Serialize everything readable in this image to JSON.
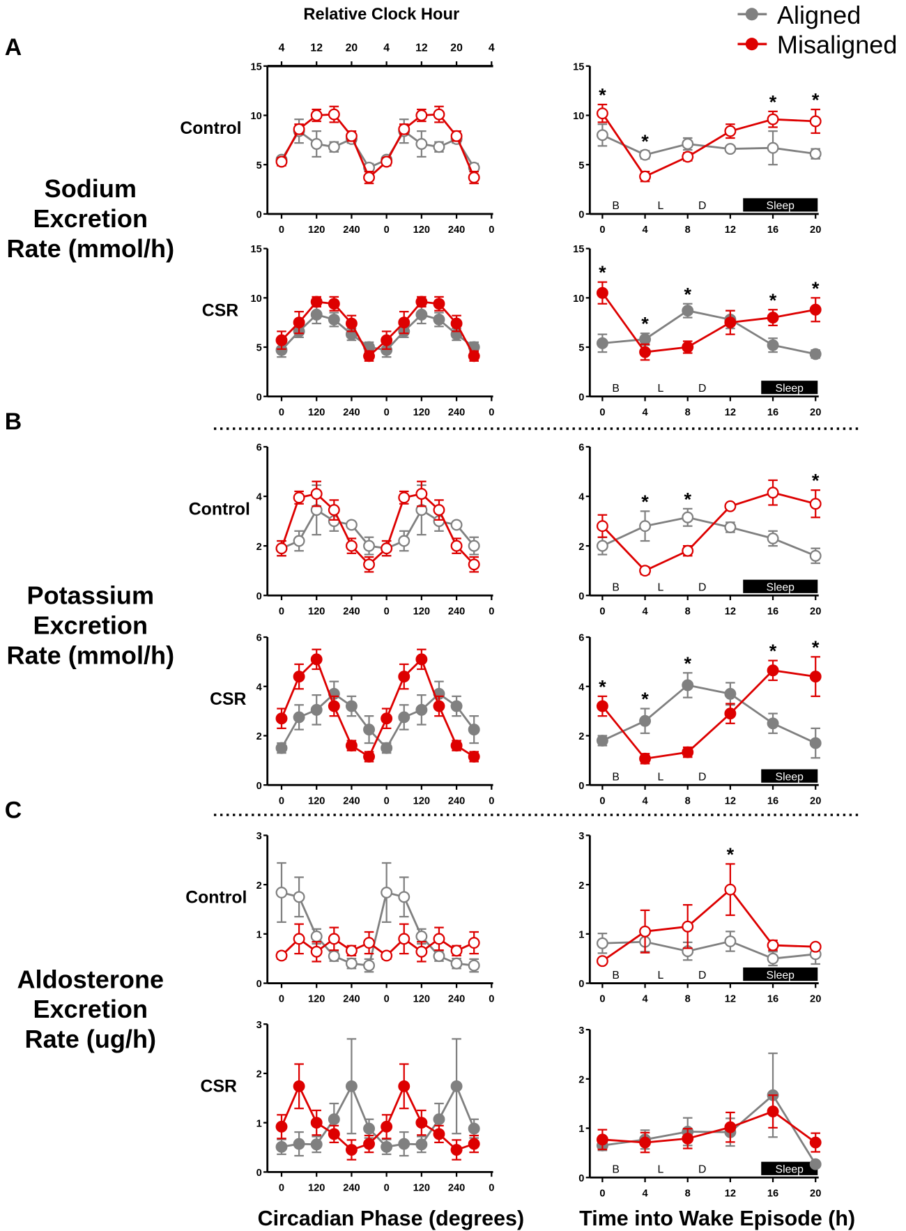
{
  "figure": {
    "top_axis_title": "Relative Clock Hour",
    "clock_hour_labels": [
      "4",
      "12",
      "20",
      "4",
      "12",
      "20",
      "4"
    ],
    "panel_letters": [
      "A",
      "B",
      "C"
    ],
    "row_titles": [
      [
        "Sodium",
        "Excretion",
        "Rate (mmol/h)"
      ],
      [
        "Potassium",
        "Excretion",
        "Rate (mmol/h)"
      ],
      [
        "Aldosterone",
        "Excretion",
        "Rate (ug/h)"
      ]
    ],
    "xlabel_left": "Circadian Phase (degrees)",
    "xlabel_right": "Time into Wake Episode (h)",
    "legend": [
      {
        "name": "Aligned",
        "color": "#808080"
      },
      {
        "name": "Misaligned",
        "color": "#dd0000"
      }
    ],
    "period_labels": [
      "B",
      "L",
      "D"
    ],
    "sleep_label": "Sleep"
  },
  "chart_data": [
    {
      "type": "line",
      "group": "A",
      "condition": "Control",
      "x": [
        0,
        60,
        120,
        180,
        240,
        300,
        360,
        420,
        480,
        540,
        600,
        660
      ],
      "xlim": [
        0,
        720
      ],
      "xticks": [
        0,
        120,
        240,
        360,
        480,
        600,
        720
      ],
      "xtick_labels": [
        "0",
        "120",
        "240",
        "0",
        "120",
        "240",
        "0"
      ],
      "ylim": [
        0,
        15
      ],
      "yticks": [
        "0",
        "5",
        "10",
        "15"
      ],
      "marker": "open",
      "series": [
        {
          "name": "Aligned",
          "values": [
            5.5,
            8.4,
            7.1,
            6.8,
            7.6,
            4.7,
            5.5,
            8.4,
            7.1,
            6.8,
            7.6,
            4.7
          ],
          "errors": [
            0.2,
            1.2,
            1.3,
            0.5,
            0.4,
            0.4,
            0.2,
            1.2,
            1.3,
            0.5,
            0.4,
            0.4
          ]
        },
        {
          "name": "Misaligned",
          "values": [
            5.3,
            8.6,
            10.0,
            10.1,
            7.9,
            3.7,
            5.3,
            8.6,
            10.0,
            10.1,
            7.9,
            3.7
          ],
          "errors": [
            0.4,
            0.5,
            0.6,
            0.8,
            0.5,
            0.6,
            0.4,
            0.5,
            0.6,
            0.8,
            0.5,
            0.6
          ]
        }
      ],
      "significant_x": []
    },
    {
      "type": "line",
      "group": "A",
      "x": [
        0,
        4,
        8,
        12,
        16,
        20
      ],
      "xlim": [
        0,
        20
      ],
      "xticks": [
        0,
        4,
        8,
        12,
        16,
        20
      ],
      "xtick_labels": [
        "0",
        "4",
        "8",
        "12",
        "16",
        "20"
      ],
      "ylim": [
        0,
        15
      ],
      "yticks": [
        "0",
        "5",
        "10",
        "15"
      ],
      "marker": "open",
      "sleep_window": [
        13.2,
        20.2
      ],
      "series": [
        {
          "name": "Aligned",
          "values": [
            8.0,
            6.0,
            7.1,
            6.6,
            6.7,
            6.1
          ],
          "errors": [
            1.1,
            0.4,
            0.6,
            0.3,
            1.7,
            0.5
          ]
        },
        {
          "name": "Misaligned",
          "values": [
            10.2,
            3.8,
            5.8,
            8.4,
            9.6,
            9.4
          ],
          "errors": [
            0.9,
            0.5,
            0.4,
            0.7,
            0.8,
            1.2
          ]
        }
      ],
      "significant_x": [
        0,
        4,
        16,
        20
      ]
    },
    {
      "type": "line",
      "group": "A",
      "condition": "CSR",
      "x": [
        0,
        60,
        120,
        180,
        240,
        300,
        360,
        420,
        480,
        540,
        600,
        660
      ],
      "xlim": [
        0,
        720
      ],
      "xticks": [
        0,
        120,
        240,
        360,
        480,
        600,
        720
      ],
      "xtick_labels": [
        "0",
        "120",
        "240",
        "0",
        "120",
        "240",
        "0"
      ],
      "ylim": [
        0,
        15
      ],
      "yticks": [
        "0",
        "5",
        "10",
        "15"
      ],
      "marker": "filled",
      "series": [
        {
          "name": "Aligned",
          "values": [
            4.7,
            6.6,
            8.3,
            7.8,
            6.3,
            5.0,
            4.7,
            6.6,
            8.3,
            7.8,
            6.3,
            5.0
          ],
          "errors": [
            0.7,
            0.6,
            0.9,
            0.7,
            0.6,
            0.5,
            0.7,
            0.6,
            0.9,
            0.7,
            0.6,
            0.5
          ]
        },
        {
          "name": "Misaligned",
          "values": [
            5.7,
            7.5,
            9.6,
            9.4,
            7.4,
            4.1,
            5.7,
            7.5,
            9.6,
            9.4,
            7.4,
            4.1
          ],
          "errors": [
            0.9,
            1.1,
            0.5,
            0.7,
            0.8,
            0.5,
            0.9,
            1.1,
            0.5,
            0.7,
            0.8,
            0.5
          ]
        }
      ],
      "significant_x": []
    },
    {
      "type": "line",
      "group": "A",
      "x": [
        0,
        4,
        8,
        12,
        16,
        20
      ],
      "xlim": [
        0,
        20
      ],
      "xticks": [
        0,
        4,
        8,
        12,
        16,
        20
      ],
      "xtick_labels": [
        "0",
        "4",
        "8",
        "12",
        "16",
        "20"
      ],
      "ylim": [
        0,
        15
      ],
      "yticks": [
        "0",
        "5",
        "10",
        "15"
      ],
      "marker": "filled",
      "sleep_window": [
        14.9,
        20.2
      ],
      "series": [
        {
          "name": "Aligned",
          "values": [
            5.4,
            5.8,
            8.7,
            7.8,
            5.2,
            4.3
          ],
          "errors": [
            0.9,
            0.6,
            0.7,
            0.9,
            0.7,
            0.4
          ]
        },
        {
          "name": "Misaligned",
          "values": [
            10.5,
            4.5,
            5.0,
            7.5,
            8.0,
            8.8
          ],
          "errors": [
            1.1,
            0.8,
            0.6,
            1.2,
            0.8,
            1.2
          ]
        }
      ],
      "significant_x": [
        0,
        4,
        8,
        16,
        20
      ]
    },
    {
      "type": "line",
      "group": "B",
      "condition": "Control",
      "x": [
        0,
        60,
        120,
        180,
        240,
        300,
        360,
        420,
        480,
        540,
        600,
        660
      ],
      "xlim": [
        0,
        720
      ],
      "xticks": [
        0,
        120,
        240,
        360,
        480,
        600,
        720
      ],
      "xtick_labels": [
        "0",
        "120",
        "240",
        "0",
        "120",
        "240",
        "0"
      ],
      "ylim": [
        0,
        6
      ],
      "yticks": [
        "0",
        "2",
        "4",
        "6"
      ],
      "marker": "open",
      "series": [
        {
          "name": "Aligned",
          "values": [
            1.9,
            2.2,
            3.45,
            3.0,
            2.85,
            2.0,
            1.9,
            2.2,
            3.45,
            3.0,
            2.85,
            2.0
          ],
          "errors": [
            0.3,
            0.4,
            1.0,
            0.4,
            0.05,
            0.35,
            0.3,
            0.4,
            1.0,
            0.4,
            0.05,
            0.35
          ]
        },
        {
          "name": "Misaligned",
          "values": [
            1.9,
            3.95,
            4.1,
            3.45,
            2.0,
            1.25,
            1.9,
            3.95,
            4.1,
            3.45,
            2.0,
            1.25
          ],
          "errors": [
            0.3,
            0.25,
            0.5,
            0.4,
            0.3,
            0.3,
            0.3,
            0.25,
            0.5,
            0.4,
            0.3,
            0.3
          ]
        }
      ],
      "significant_x": []
    },
    {
      "type": "line",
      "group": "B",
      "x": [
        0,
        4,
        8,
        12,
        16,
        20
      ],
      "xlim": [
        0,
        20
      ],
      "xticks": [
        0,
        4,
        8,
        12,
        16,
        20
      ],
      "xtick_labels": [
        "0",
        "4",
        "8",
        "12",
        "16",
        "20"
      ],
      "ylim": [
        0,
        6
      ],
      "yticks": [
        "0",
        "2",
        "4",
        "6"
      ],
      "marker": "open",
      "sleep_window": [
        13.2,
        20.2
      ],
      "series": [
        {
          "name": "Aligned",
          "values": [
            2.0,
            2.8,
            3.15,
            2.75,
            2.3,
            1.6
          ],
          "errors": [
            0.35,
            0.6,
            0.35,
            0.2,
            0.3,
            0.3
          ]
        },
        {
          "name": "Misaligned",
          "values": [
            2.8,
            1.0,
            1.8,
            3.6,
            4.15,
            3.7
          ],
          "errors": [
            0.45,
            0.15,
            0.2,
            0.05,
            0.5,
            0.55
          ]
        }
      ],
      "significant_x": [
        4,
        8,
        20
      ]
    },
    {
      "type": "line",
      "group": "B",
      "condition": "CSR",
      "x": [
        0,
        60,
        120,
        180,
        240,
        300,
        360,
        420,
        480,
        540,
        600,
        660
      ],
      "xlim": [
        0,
        720
      ],
      "xticks": [
        0,
        120,
        240,
        360,
        480,
        600,
        720
      ],
      "xtick_labels": [
        "0",
        "120",
        "240",
        "0",
        "120",
        "240",
        "0"
      ],
      "ylim": [
        0,
        6
      ],
      "yticks": [
        "0",
        "2",
        "4",
        "6"
      ],
      "marker": "filled",
      "series": [
        {
          "name": "Aligned",
          "values": [
            1.5,
            2.75,
            3.05,
            3.7,
            3.2,
            2.25,
            1.5,
            2.75,
            3.05,
            3.7,
            3.2,
            2.25
          ],
          "errors": [
            0.2,
            0.5,
            0.6,
            0.5,
            0.4,
            0.55,
            0.2,
            0.5,
            0.6,
            0.5,
            0.4,
            0.55
          ]
        },
        {
          "name": "Misaligned",
          "values": [
            2.7,
            4.4,
            5.1,
            3.2,
            1.6,
            1.15,
            2.7,
            4.4,
            5.1,
            3.2,
            1.6,
            1.15
          ],
          "errors": [
            0.4,
            0.5,
            0.4,
            0.4,
            0.2,
            0.2,
            0.4,
            0.5,
            0.4,
            0.4,
            0.2,
            0.2
          ]
        }
      ],
      "significant_x": []
    },
    {
      "type": "line",
      "group": "B",
      "x": [
        0,
        4,
        8,
        12,
        16,
        20
      ],
      "xlim": [
        0,
        20
      ],
      "xticks": [
        0,
        4,
        8,
        12,
        16,
        20
      ],
      "xtick_labels": [
        "0",
        "4",
        "8",
        "12",
        "16",
        "20"
      ],
      "ylim": [
        0,
        6
      ],
      "yticks": [
        "0",
        "2",
        "4",
        "6"
      ],
      "marker": "filled",
      "sleep_window": [
        14.9,
        20.2
      ],
      "series": [
        {
          "name": "Aligned",
          "values": [
            1.8,
            2.6,
            4.05,
            3.7,
            2.5,
            1.7
          ],
          "errors": [
            0.2,
            0.5,
            0.5,
            0.45,
            0.4,
            0.6
          ]
        },
        {
          "name": "Misaligned",
          "values": [
            3.2,
            1.07,
            1.33,
            2.9,
            4.65,
            4.4
          ],
          "errors": [
            0.4,
            0.2,
            0.2,
            0.4,
            0.4,
            0.8
          ]
        }
      ],
      "significant_x": [
        0,
        4,
        8,
        16,
        20
      ]
    },
    {
      "type": "line",
      "group": "C",
      "condition": "Control",
      "x": [
        0,
        60,
        120,
        180,
        240,
        300,
        360,
        420,
        480,
        540,
        600,
        660
      ],
      "xlim": [
        0,
        720
      ],
      "xticks": [
        0,
        120,
        240,
        360,
        480,
        600,
        720
      ],
      "xtick_labels": [
        "0",
        "120",
        "240",
        "0",
        "120",
        "240",
        "0"
      ],
      "ylim": [
        0,
        3
      ],
      "yticks": [
        "0",
        "1",
        "2",
        "3"
      ],
      "marker": "open",
      "series": [
        {
          "name": "Aligned",
          "values": [
            1.84,
            1.75,
            0.95,
            0.55,
            0.4,
            0.36,
            1.84,
            1.75,
            0.95,
            0.55,
            0.4,
            0.36
          ],
          "errors": [
            0.6,
            0.4,
            0.15,
            0.1,
            0.1,
            0.13,
            0.6,
            0.4,
            0.15,
            0.1,
            0.1,
            0.13
          ]
        },
        {
          "name": "Misaligned",
          "values": [
            0.56,
            0.9,
            0.64,
            0.9,
            0.66,
            0.82,
            0.56,
            0.9,
            0.64,
            0.9,
            0.66,
            0.82
          ],
          "errors": [
            0.07,
            0.3,
            0.2,
            0.23,
            0.1,
            0.22,
            0.07,
            0.3,
            0.2,
            0.23,
            0.1,
            0.22
          ]
        }
      ],
      "significant_x": []
    },
    {
      "type": "line",
      "group": "C",
      "x": [
        0,
        4,
        8,
        12,
        16,
        20
      ],
      "xlim": [
        0,
        20
      ],
      "xticks": [
        0,
        4,
        8,
        12,
        16,
        20
      ],
      "xtick_labels": [
        "0",
        "4",
        "8",
        "12",
        "16",
        "20"
      ],
      "ylim": [
        0,
        3
      ],
      "yticks": [
        "0",
        "1",
        "2",
        "3"
      ],
      "marker": "open",
      "sleep_window": [
        13.2,
        20.2
      ],
      "series": [
        {
          "name": "Aligned",
          "values": [
            0.81,
            0.84,
            0.65,
            0.85,
            0.5,
            0.59
          ],
          "errors": [
            0.2,
            0.2,
            0.18,
            0.2,
            0.14,
            0.2
          ]
        },
        {
          "name": "Misaligned",
          "values": [
            0.45,
            1.05,
            1.15,
            1.9,
            0.77,
            0.74
          ],
          "errors": [
            0,
            0.43,
            0.44,
            0.52,
            0.1,
            0.06
          ]
        }
      ],
      "significant_x": [
        12
      ]
    },
    {
      "type": "line",
      "group": "C",
      "condition": "CSR",
      "x": [
        0,
        60,
        120,
        180,
        240,
        300,
        360,
        420,
        480,
        540,
        600,
        660
      ],
      "xlim": [
        0,
        720
      ],
      "xticks": [
        0,
        120,
        240,
        360,
        480,
        600,
        720
      ],
      "xtick_labels": [
        "0",
        "120",
        "240",
        "0",
        "120",
        "240",
        "0"
      ],
      "ylim": [
        0,
        3
      ],
      "yticks": [
        "0",
        "1",
        "2",
        "3"
      ],
      "marker": "filled",
      "series": [
        {
          "name": "Aligned",
          "values": [
            0.51,
            0.57,
            0.56,
            1.07,
            1.74,
            0.88,
            0.51,
            0.57,
            0.56,
            1.07,
            1.74,
            0.88
          ],
          "errors": [
            0.15,
            0.24,
            0.16,
            0.32,
            0.96,
            0.19,
            0.15,
            0.24,
            0.16,
            0.32,
            0.96,
            0.19
          ]
        },
        {
          "name": "Misaligned",
          "values": [
            0.92,
            1.74,
            1.0,
            0.77,
            0.45,
            0.57,
            0.92,
            1.74,
            1.0,
            0.77,
            0.45,
            0.57
          ],
          "errors": [
            0.24,
            0.45,
            0.25,
            0.17,
            0.2,
            0.17,
            0.24,
            0.45,
            0.25,
            0.17,
            0.2,
            0.17
          ]
        }
      ],
      "significant_x": []
    },
    {
      "type": "line",
      "group": "C",
      "x": [
        0,
        4,
        8,
        12,
        16,
        20
      ],
      "xlim": [
        0,
        20
      ],
      "xticks": [
        0,
        4,
        8,
        12,
        16,
        20
      ],
      "xtick_labels": [
        "0",
        "4",
        "8",
        "12",
        "16",
        "20"
      ],
      "ylim": [
        0,
        3
      ],
      "yticks": [
        "0",
        "1",
        "2",
        "3"
      ],
      "marker": "filled",
      "sleep_window": [
        14.9,
        20.2
      ],
      "series": [
        {
          "name": "Aligned",
          "values": [
            0.65,
            0.77,
            0.93,
            0.92,
            1.67,
            0.27
          ],
          "errors": [
            0.1,
            0.19,
            0.28,
            0.28,
            0.85,
            0
          ]
        },
        {
          "name": "Misaligned",
          "values": [
            0.77,
            0.71,
            0.79,
            1.02,
            1.34,
            0.71
          ],
          "errors": [
            0.2,
            0.2,
            0.2,
            0.3,
            0.33,
            0.19
          ]
        }
      ],
      "significant_x": []
    }
  ]
}
